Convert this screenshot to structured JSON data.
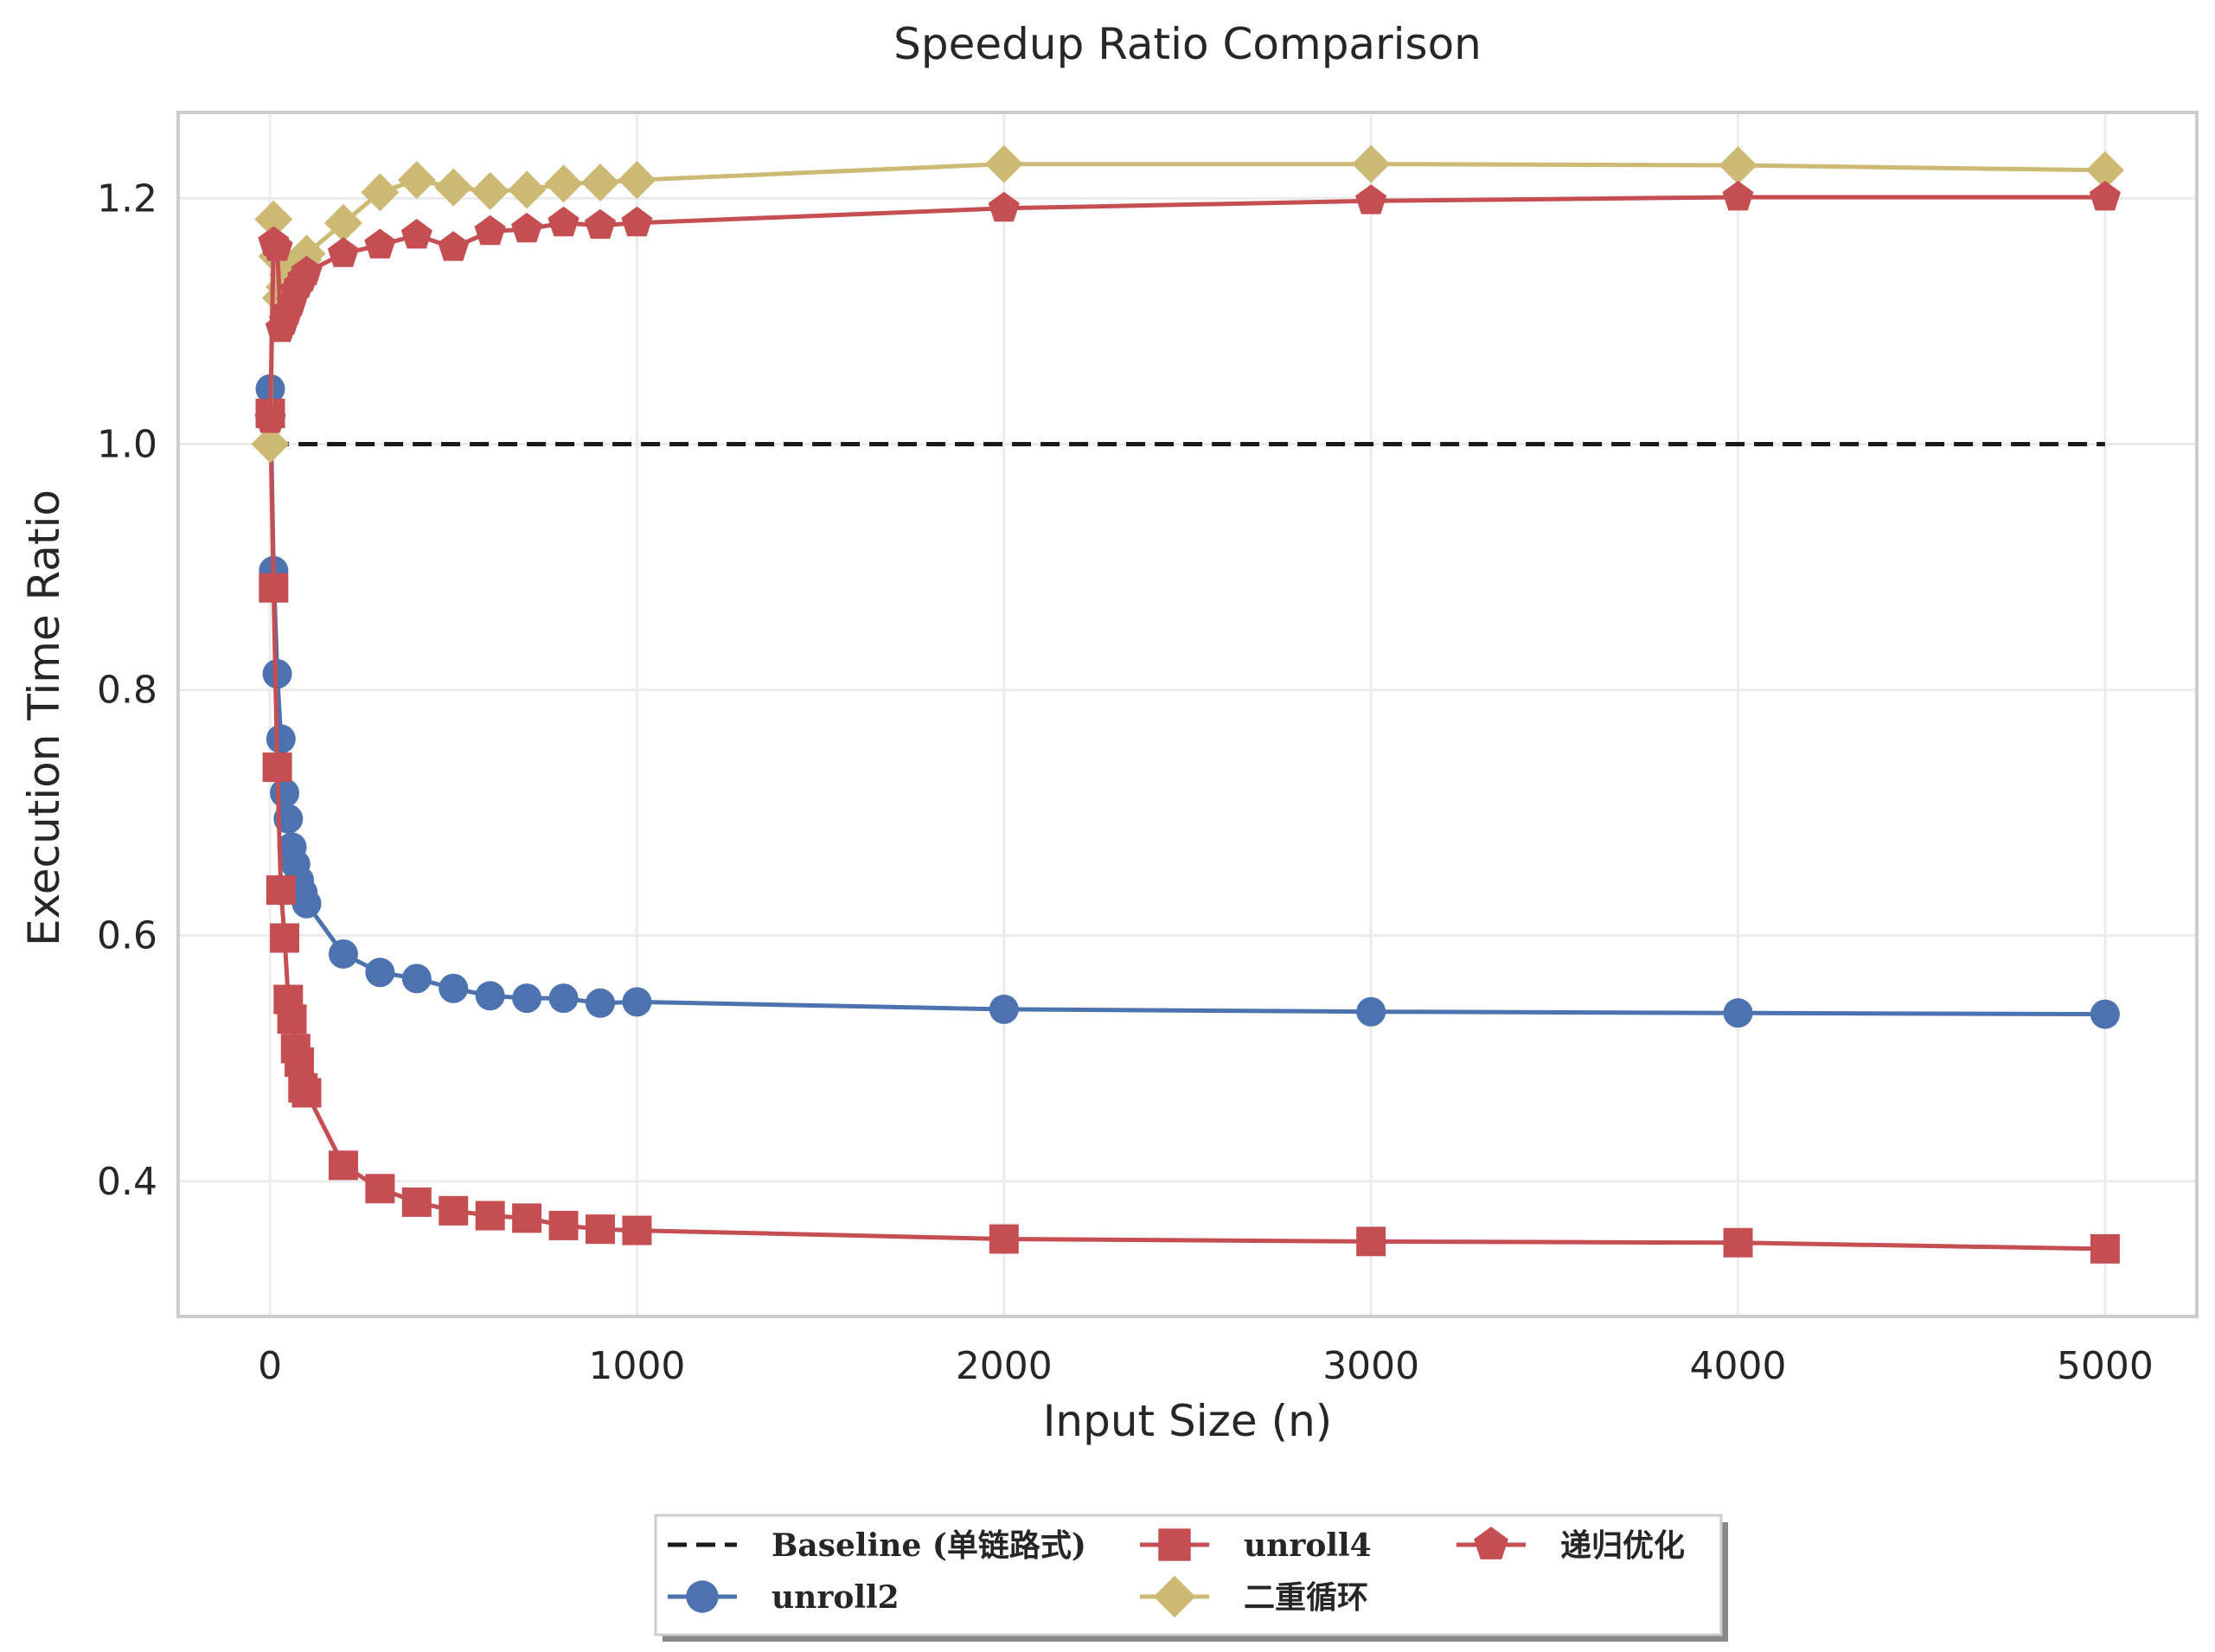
{
  "chart_data": {
    "type": "line",
    "title": "Speedup Ratio Comparison",
    "xlabel": "Input Size (n)",
    "ylabel": "Execution Time Ratio",
    "xlim": [
      -250,
      5250
    ],
    "ylim": [
      0.29,
      1.27
    ],
    "xticks": [
      0,
      1000,
      2000,
      3000,
      4000,
      5000
    ],
    "yticks": [
      0.4,
      0.6,
      0.8,
      1.0,
      1.2
    ],
    "xtick_labels": [
      "0",
      "1000",
      "2000",
      "3000",
      "4000",
      "5000"
    ],
    "ytick_labels": [
      "0.4",
      "0.6",
      "0.8",
      "1.0",
      "1.2"
    ],
    "grid": true,
    "legend_placement": "bottom-center, below plot",
    "series": [
      {
        "name": "Baseline (单链路式)",
        "color": "#1a1a1a",
        "marker": "none",
        "linestyle": "dashed",
        "x": [
          0,
          5000
        ],
        "y": [
          1.0,
          1.0
        ]
      },
      {
        "name": "unroll2",
        "color": "#4c72b0",
        "marker": "circle",
        "linestyle": "solid",
        "x": [
          1,
          10,
          20,
          30,
          40,
          50,
          60,
          70,
          80,
          90,
          100,
          200,
          300,
          400,
          500,
          600,
          700,
          800,
          900,
          1000,
          2000,
          3000,
          4000,
          5000
        ],
        "y": [
          1.045,
          0.897,
          0.813,
          0.76,
          0.716,
          0.695,
          0.672,
          0.658,
          0.645,
          0.635,
          0.626,
          0.585,
          0.57,
          0.565,
          0.557,
          0.551,
          0.549,
          0.549,
          0.545,
          0.546,
          0.54,
          0.538,
          0.537,
          0.536
        ]
      },
      {
        "name": "unroll4",
        "color": "#c44e52",
        "marker": "square",
        "linestyle": "solid",
        "x": [
          1,
          10,
          20,
          30,
          40,
          50,
          60,
          70,
          80,
          90,
          100,
          200,
          300,
          400,
          500,
          600,
          700,
          800,
          900,
          1000,
          2000,
          3000,
          4000,
          5000
        ],
        "y": [
          1.025,
          0.883,
          0.737,
          0.637,
          0.598,
          0.548,
          0.532,
          0.508,
          0.497,
          0.476,
          0.472,
          0.413,
          0.394,
          0.383,
          0.376,
          0.372,
          0.37,
          0.364,
          0.361,
          0.36,
          0.353,
          0.351,
          0.35,
          0.345
        ]
      },
      {
        "name": "二重循环",
        "color": "#ccb974",
        "marker": "diamond",
        "linestyle": "solid",
        "x": [
          1,
          10,
          20,
          30,
          40,
          50,
          60,
          70,
          80,
          90,
          100,
          200,
          300,
          400,
          500,
          600,
          700,
          800,
          900,
          1000,
          2000,
          3000,
          4000,
          5000
        ],
        "y": [
          1.0,
          1.183,
          1.153,
          1.119,
          1.128,
          1.138,
          1.134,
          1.142,
          1.147,
          1.15,
          1.155,
          1.18,
          1.205,
          1.215,
          1.209,
          1.206,
          1.207,
          1.212,
          1.213,
          1.215,
          1.228,
          1.228,
          1.227,
          1.223
        ]
      },
      {
        "name": "递归优化",
        "color": "#c44e52",
        "marker": "pentagon",
        "linestyle": "solid",
        "x": [
          1,
          10,
          20,
          30,
          40,
          50,
          60,
          70,
          80,
          90,
          100,
          200,
          300,
          400,
          500,
          600,
          700,
          800,
          900,
          1000,
          2000,
          3000,
          4000,
          5000
        ],
        "y": [
          1.02,
          1.164,
          1.16,
          1.094,
          1.1,
          1.108,
          1.115,
          1.125,
          1.13,
          1.135,
          1.14,
          1.155,
          1.162,
          1.17,
          1.16,
          1.173,
          1.175,
          1.18,
          1.178,
          1.18,
          1.192,
          1.198,
          1.201,
          1.201
        ]
      }
    ]
  }
}
